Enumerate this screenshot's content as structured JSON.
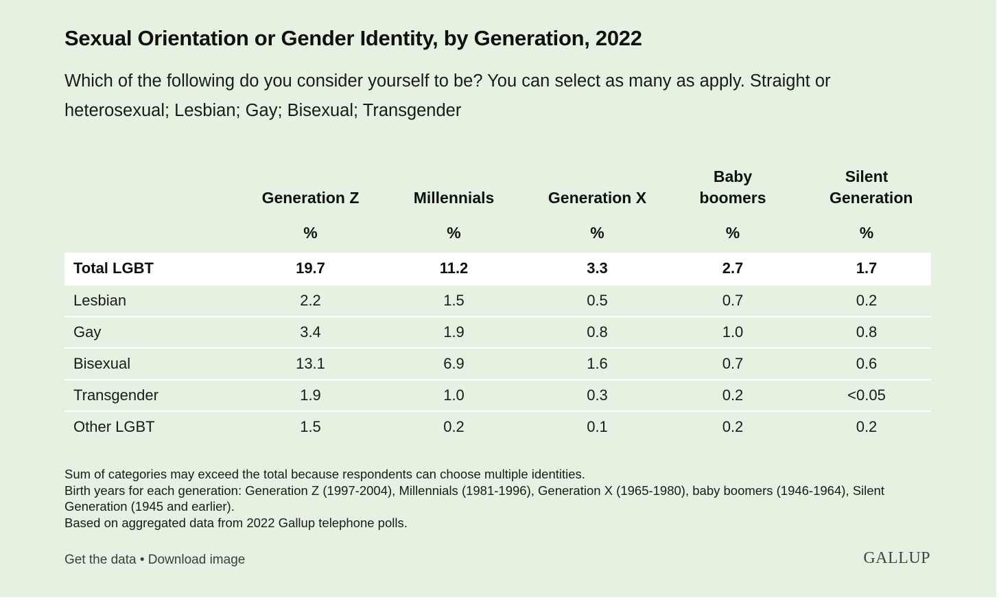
{
  "chart_data": {
    "type": "table",
    "title": "Sexual Orientation or Gender Identity, by Generation, 2022",
    "subtitle": "Which of the following do you consider yourself to be? You can select as many as apply. Straight or heterosexual; Lesbian; Gay; Bisexual; Transgender",
    "columns": [
      "Generation Z",
      "Millennials",
      "Generation X",
      "Baby boomers",
      "Silent Generation"
    ],
    "unit": "%",
    "rows": [
      {
        "label": "Total LGBT",
        "values": [
          "19.7",
          "11.2",
          "3.3",
          "2.7",
          "1.7"
        ]
      },
      {
        "label": "Lesbian",
        "values": [
          "2.2",
          "1.5",
          "0.5",
          "0.7",
          "0.2"
        ]
      },
      {
        "label": "Gay",
        "values": [
          "3.4",
          "1.9",
          "0.8",
          "1.0",
          "0.8"
        ]
      },
      {
        "label": "Bisexual",
        "values": [
          "13.1",
          "6.9",
          "1.6",
          "0.7",
          "0.6"
        ]
      },
      {
        "label": "Transgender",
        "values": [
          "1.9",
          "1.0",
          "0.3",
          "0.2",
          "<0.05"
        ]
      },
      {
        "label": "Other LGBT",
        "values": [
          "1.5",
          "0.2",
          "0.1",
          "0.2",
          "0.2"
        ]
      }
    ],
    "notes": [
      "Sum of categories may exceed the total because respondents can choose multiple identities.",
      "Birth years for each generation: Generation Z (1997-2004), Millennials (1981-1996), Generation X (1965-1980), baby boomers (1946-1964), Silent Generation (1945 and earlier).",
      "Based on aggregated data from 2022 Gallup telephone polls."
    ]
  },
  "footer": {
    "get_data": "Get the data",
    "separator": " • ",
    "download": "Download image",
    "brand": "GALLUP"
  },
  "colors": {
    "background": "#e5f2e1",
    "highlight_row": "#ffffff"
  }
}
